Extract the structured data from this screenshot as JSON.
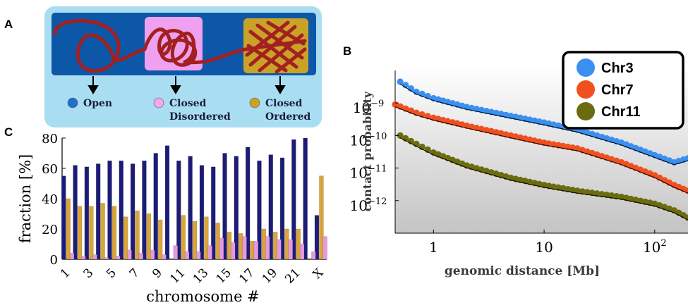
{
  "panels": {
    "a": "A",
    "b": "B",
    "c": "C"
  },
  "diagram": {
    "states": [
      {
        "label_lines": [
          "Open"
        ],
        "marker_color": "#1f6fd1"
      },
      {
        "label_lines": [
          "Closed",
          "Disordered"
        ],
        "marker_color": "#f3a8ee"
      },
      {
        "label_lines": [
          "Closed",
          "Ordered"
        ],
        "marker_color": "#c9a227"
      }
    ],
    "colors": {
      "frame": "#a9def2",
      "band": "#0d57a8",
      "chain": "#a32020",
      "closed_disordered_box": "#efa1ef",
      "closed_ordered_box": "#c9a227"
    }
  },
  "chart_data": [
    {
      "type": "bar",
      "xlabel": "chromosome #",
      "ylabel": "fraction [%]",
      "ylim": [
        0,
        80
      ],
      "yticks": [
        0,
        20,
        40,
        60,
        80
      ],
      "categories": [
        "1",
        "2",
        "3",
        "4",
        "5",
        "6",
        "7",
        "8",
        "9",
        "10",
        "11",
        "12",
        "13",
        "14",
        "15",
        "16",
        "17",
        "18",
        "19",
        "20",
        "21",
        "22",
        "X"
      ],
      "tick_labels": [
        "1",
        "3",
        "5",
        "7",
        "9",
        "11",
        "13",
        "15",
        "17",
        "19",
        "21",
        "X"
      ],
      "tick_label_categories": [
        "1",
        "3",
        "5",
        "7",
        "9",
        "11",
        "13",
        "15",
        "17",
        "19",
        "21",
        "X"
      ],
      "series": [
        {
          "color": "#1c1c78",
          "values": [
            55,
            62,
            61,
            63,
            65,
            65,
            63,
            65,
            70,
            75,
            65,
            68,
            62,
            61,
            70,
            68,
            74,
            65,
            69,
            67,
            79,
            80,
            29
          ]
        },
        {
          "color": "#d9a53b",
          "values": [
            40,
            35,
            35,
            37,
            35,
            28,
            32,
            30,
            26,
            0,
            29,
            25,
            28,
            24,
            18,
            17,
            12,
            20,
            18,
            20,
            20,
            0,
            55
          ]
        },
        {
          "color": "#e59ae0",
          "values": [
            4,
            2,
            3,
            1,
            2,
            6,
            4,
            6,
            3,
            9,
            5,
            5,
            9,
            14,
            11,
            15,
            12,
            15,
            13,
            13,
            10,
            5,
            15
          ]
        }
      ]
    },
    {
      "type": "scatter",
      "xlabel": "genomic distance [Mb]",
      "ylabel": "contact probability",
      "xscale": "log",
      "yscale": "log",
      "xlim": [
        0.45,
        200
      ],
      "ylim": [
        1e-13,
        1e-08
      ],
      "xticks": [
        {
          "value": 1,
          "base": "1",
          "exp": ""
        },
        {
          "value": 10,
          "base": "10",
          "exp": ""
        },
        {
          "value": 100,
          "base": "10",
          "exp": "2"
        }
      ],
      "yticks": [
        {
          "value": 1e-09,
          "base": "10",
          "exp": "−9"
        },
        {
          "value": 1e-10,
          "base": "10",
          "exp": "−10"
        },
        {
          "value": 1e-11,
          "base": "10",
          "exp": "−11"
        },
        {
          "value": 1e-12,
          "base": "10",
          "exp": "−12"
        }
      ],
      "legend": "top-right",
      "series": [
        {
          "name": "Chr3",
          "color": "#3a8ff0",
          "x": [
            0.5,
            0.7,
            1,
            2,
            5,
            10,
            20,
            50,
            100,
            150,
            200
          ],
          "y": [
            4.5e-09,
            2.2e-09,
            1.4e-09,
            7.5e-10,
            4e-10,
            2.5e-10,
            1.5e-10,
            6e-11,
            2.5e-11,
            1.5e-11,
            2e-11
          ]
        },
        {
          "name": "Chr7",
          "color": "#f05020",
          "x": [
            0.45,
            0.7,
            1,
            2,
            5,
            10,
            20,
            50,
            100,
            150,
            200
          ],
          "y": [
            9e-10,
            5e-10,
            3.5e-10,
            2e-10,
            1e-10,
            6e-11,
            4e-11,
            1.5e-11,
            6e-12,
            3e-12,
            2e-12
          ]
        },
        {
          "name": "Chr11",
          "color": "#6b6b10",
          "x": [
            0.5,
            0.7,
            1,
            2,
            5,
            10,
            20,
            50,
            100,
            150,
            200
          ],
          "y": [
            1e-10,
            5.5e-11,
            3e-11,
            1.2e-11,
            5e-12,
            3e-12,
            2e-12,
            1.3e-12,
            8e-13,
            5e-13,
            3e-13
          ]
        }
      ]
    }
  ]
}
